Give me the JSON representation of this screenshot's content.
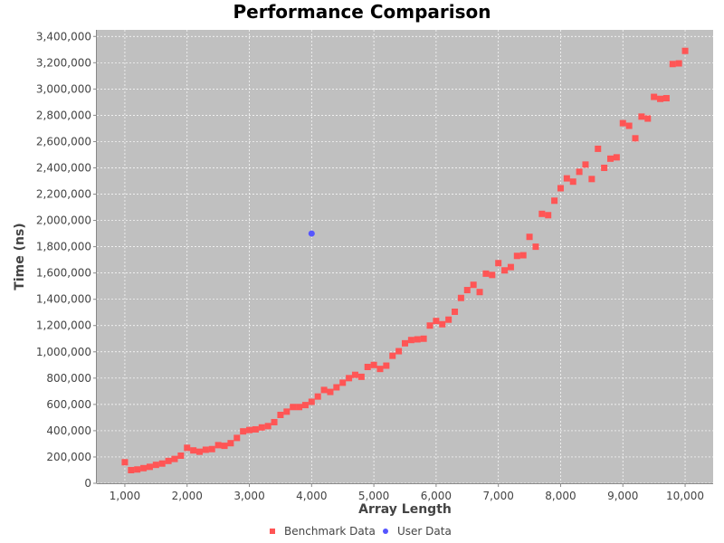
{
  "chart_data": {
    "type": "scatter",
    "title": "Performance Comparison",
    "xlabel": "Array Length",
    "ylabel": "Time (ns)",
    "xlim": [
      550,
      10450
    ],
    "ylim": [
      0,
      3450000
    ],
    "xticks": [
      1000,
      2000,
      3000,
      4000,
      5000,
      6000,
      7000,
      8000,
      9000,
      10000
    ],
    "xtick_labels": [
      "1,000",
      "2,000",
      "3,000",
      "4,000",
      "5,000",
      "6,000",
      "7,000",
      "8,000",
      "9,000",
      "10,000"
    ],
    "yticks": [
      0,
      200000,
      400000,
      600000,
      800000,
      1000000,
      1200000,
      1400000,
      1600000,
      1800000,
      2000000,
      2200000,
      2400000,
      2600000,
      2800000,
      3000000,
      3200000,
      3400000
    ],
    "ytick_labels": [
      "0",
      "200,000",
      "400,000",
      "600,000",
      "800,000",
      "1,000,000",
      "1,200,000",
      "1,400,000",
      "1,600,000",
      "1,800,000",
      "2,000,000",
      "2,200,000",
      "2,400,000",
      "2,600,000",
      "2,800,000",
      "3,000,000",
      "3,200,000",
      "3,400,000"
    ],
    "grid": true,
    "legend_position": "bottom",
    "plot_background": "#c0c0c0",
    "series": [
      {
        "name": "Benchmark Data",
        "marker": "square",
        "color": "#ff5555",
        "x": [
          1000,
          1100,
          1200,
          1300,
          1400,
          1500,
          1600,
          1700,
          1800,
          1900,
          2000,
          2100,
          2200,
          2300,
          2400,
          2500,
          2600,
          2700,
          2800,
          2900,
          3000,
          3100,
          3200,
          3300,
          3400,
          3500,
          3600,
          3700,
          3800,
          3900,
          4000,
          4100,
          4200,
          4300,
          4400,
          4500,
          4600,
          4700,
          4800,
          4900,
          5000,
          5100,
          5200,
          5300,
          5400,
          5500,
          5600,
          5700,
          5800,
          5900,
          6000,
          6100,
          6200,
          6300,
          6400,
          6500,
          6600,
          6700,
          6800,
          6900,
          7000,
          7100,
          7200,
          7300,
          7400,
          7500,
          7600,
          7700,
          7800,
          7900,
          8000,
          8100,
          8200,
          8300,
          8400,
          8500,
          8600,
          8700,
          8800,
          8900,
          9000,
          9100,
          9200,
          9300,
          9400,
          9500,
          9600,
          9700,
          9800,
          9900,
          10000
        ],
        "y": [
          160000,
          100000,
          105000,
          115000,
          125000,
          140000,
          150000,
          170000,
          185000,
          210000,
          270000,
          250000,
          240000,
          255000,
          260000,
          290000,
          285000,
          305000,
          345000,
          395000,
          405000,
          410000,
          425000,
          435000,
          465000,
          520000,
          545000,
          580000,
          580000,
          595000,
          620000,
          660000,
          710000,
          695000,
          730000,
          765000,
          800000,
          825000,
          810000,
          885000,
          900000,
          870000,
          895000,
          970000,
          1005000,
          1065000,
          1090000,
          1095000,
          1100000,
          1200000,
          1235000,
          1210000,
          1245000,
          1305000,
          1410000,
          1470000,
          1510000,
          1455000,
          1595000,
          1585000,
          1675000,
          1620000,
          1645000,
          1730000,
          1735000,
          1875000,
          1800000,
          2050000,
          2040000,
          2150000,
          2245000,
          2320000,
          2295000,
          2370000,
          2425000,
          2315000,
          2545000,
          2400000,
          2470000,
          2480000,
          2740000,
          2720000,
          2625000,
          2790000,
          2775000,
          2940000,
          2925000,
          2930000,
          3190000,
          3195000,
          3290000
        ]
      },
      {
        "name": "User Data",
        "marker": "circle",
        "color": "#5555ff",
        "x": [
          4000
        ],
        "y": [
          1900000
        ]
      }
    ]
  }
}
